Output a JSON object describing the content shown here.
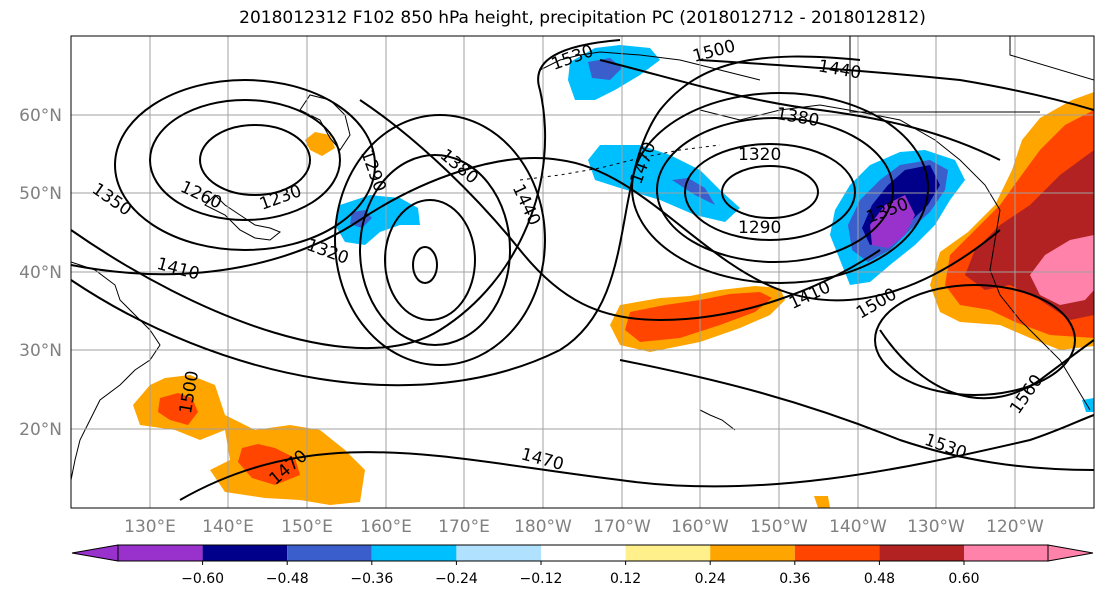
{
  "title": "2018012312 F102 850 hPa height, precipitation PC (2018012712 - 2018012812)",
  "map": {
    "lat_labels": [
      "60°N",
      "50°N",
      "40°N",
      "30°N",
      "20°N"
    ],
    "lon_labels": [
      "130°E",
      "140°E",
      "150°E",
      "160°E",
      "170°E",
      "180°W",
      "170°W",
      "160°W",
      "150°W",
      "140°W",
      "130°W",
      "120°W"
    ],
    "contour_labels": [
      "1530",
      "1500",
      "1440",
      "1380",
      "1320",
      "1470",
      "1290",
      "1350",
      "1410",
      "1500",
      "1560",
      "1530",
      "1470",
      "1350",
      "1260",
      "1230",
      "1290",
      "1380",
      "1440",
      "1410",
      "1320",
      "1500",
      "1470"
    ],
    "grid_visible": true
  },
  "colorbar": {
    "ticks": [
      "−0.60",
      "−0.48",
      "−0.36",
      "−0.24",
      "−0.12",
      "0.12",
      "0.24",
      "0.36",
      "0.48",
      "0.60"
    ],
    "colors": [
      "#9932cc",
      "#00008b",
      "#3a5fcd",
      "#00bfff",
      "#b0e2ff",
      "#ffffff",
      "#fff08c",
      "#ffa500",
      "#ff4500",
      "#b22222",
      "#ff82ab"
    ],
    "extend": "both"
  }
}
